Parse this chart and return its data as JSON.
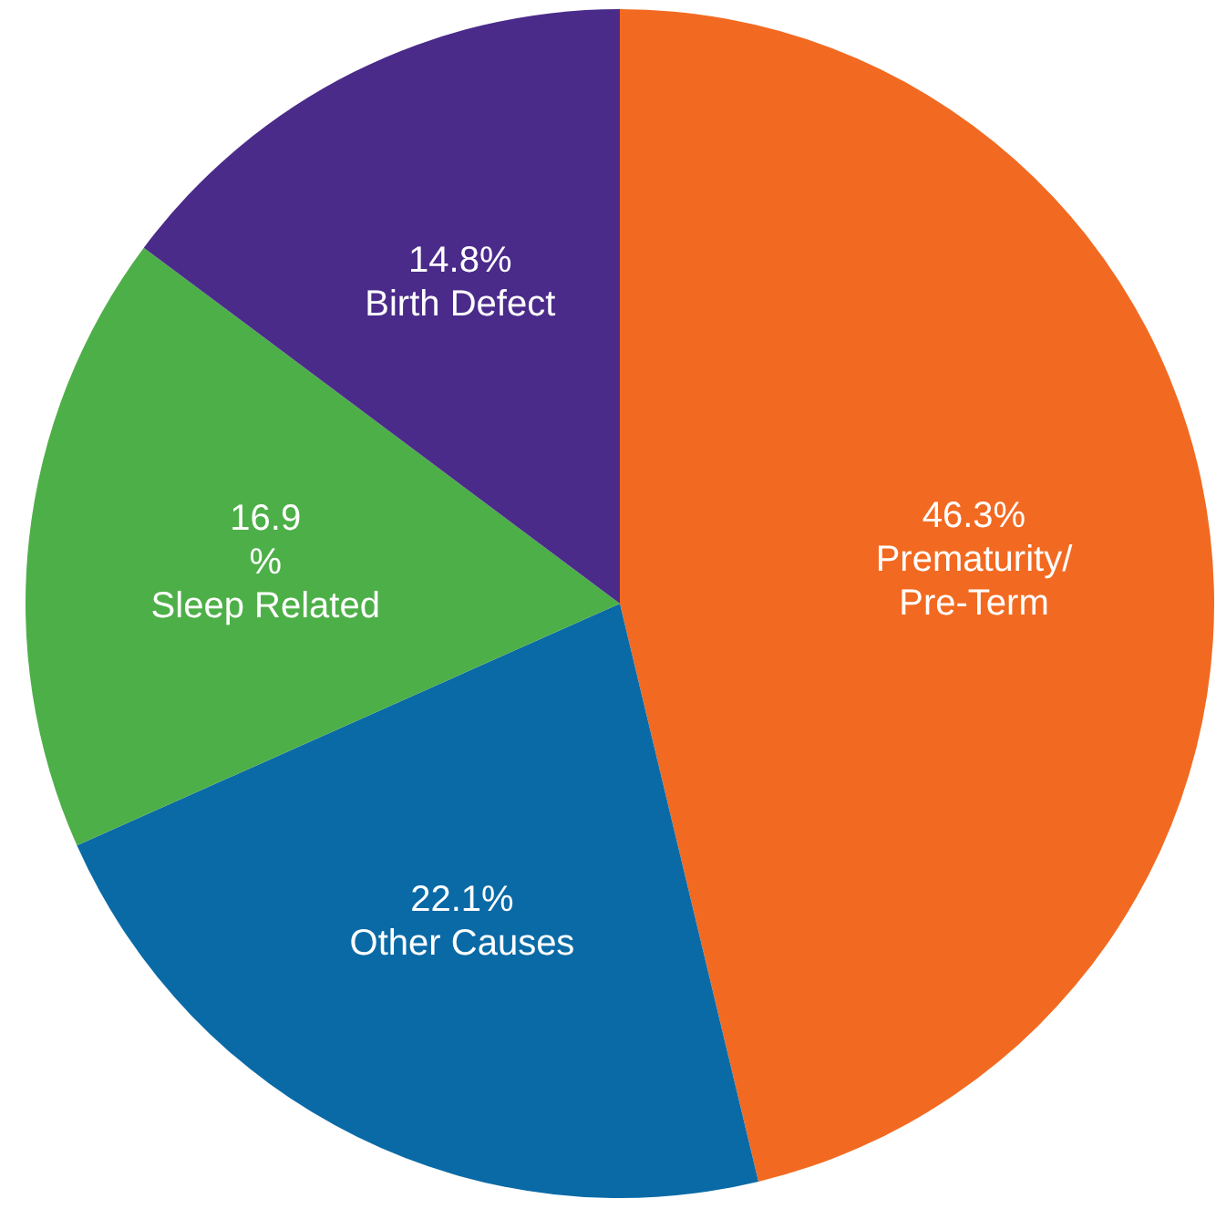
{
  "chart_data": {
    "type": "pie",
    "categories": [
      "Prematurity/\nPre-Term",
      "Other Causes",
      "Sleep Related",
      "Birth Defect"
    ],
    "values": [
      46.3,
      22.1,
      16.9,
      14.8
    ],
    "value_labels": [
      "46.3%",
      "22.1%",
      "16.9\n%",
      "14.8%"
    ],
    "colors": [
      "#f26a21",
      "#0a6aa6",
      "#4daf48",
      "#4a2b8a"
    ]
  }
}
